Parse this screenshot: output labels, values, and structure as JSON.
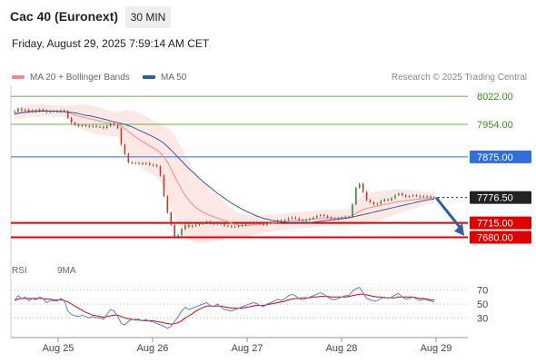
{
  "header": {
    "title": "Cac 40 (Euronext)",
    "timeframe": "30 MIN",
    "datetime": "Friday, August 29, 2025 7:59:14 AM CET"
  },
  "legend": {
    "ma20_label": "MA 20 + Bollinger Bands",
    "ma50_label": "MA 50",
    "credit": "Research © 2025 Trading Central",
    "ma20_color": "#f08a8a",
    "ma50_color": "#2e5f9e"
  },
  "rsi_legend": {
    "rsi_label": "RSI",
    "ma_label": "9MA",
    "rsi_color": "#5b7fd6",
    "ma_color": "#e00000"
  },
  "chart_data": [
    {
      "type": "candlestick",
      "price_range": [
        7648,
        8040
      ],
      "x_ticks": [
        "Aug 25",
        "Aug 26",
        "Aug 27",
        "Aug 28",
        "Aug 29"
      ],
      "levels": [
        {
          "value": 8022.0,
          "label": "8022.00",
          "kind": "resistance",
          "color": "#6ab04c"
        },
        {
          "value": 7954.0,
          "label": "7954.00",
          "kind": "resistance",
          "color": "#6ab04c"
        },
        {
          "value": 7875.0,
          "label": "7875.00",
          "kind": "pivot",
          "color": "#2f6fdc"
        },
        {
          "value": 7776.5,
          "label": "7776.50",
          "kind": "last",
          "color": "#222222"
        },
        {
          "value": 7715.0,
          "label": "7715.00",
          "kind": "support",
          "color": "#e00000"
        },
        {
          "value": 7680.0,
          "label": "7680.00",
          "kind": "support",
          "color": "#e00000"
        }
      ],
      "forecast_arrow": {
        "from": 7776.5,
        "to": 7688
      },
      "closes": [
        7985,
        7992,
        7988,
        7990,
        7985,
        7988,
        7986,
        7990,
        7988,
        7984,
        7986,
        7986,
        7985,
        7988,
        7986,
        7970,
        7958,
        7953,
        7950,
        7952,
        7950,
        7948,
        7950,
        7948,
        7948,
        7945,
        7950,
        7955,
        7952,
        7945,
        7905,
        7882,
        7862,
        7860,
        7860,
        7860,
        7858,
        7860,
        7856,
        7855,
        7852,
        7830,
        7780,
        7740,
        7710,
        7680,
        7685,
        7700,
        7710,
        7705,
        7708,
        7710,
        7712,
        7715,
        7718,
        7714,
        7712,
        7716,
        7712,
        7708,
        7707,
        7705,
        7706,
        7708,
        7710,
        7712,
        7714,
        7716,
        7715,
        7712,
        7710,
        7714,
        7716,
        7718,
        7721,
        7719,
        7722,
        7726,
        7728,
        7726,
        7722,
        7720,
        7723,
        7725,
        7728,
        7732,
        7734,
        7732,
        7728,
        7725,
        7724,
        7726,
        7728,
        7730,
        7730,
        7760,
        7800,
        7810,
        7790,
        7770,
        7765,
        7760,
        7762,
        7768,
        7772,
        7770,
        7775,
        7782,
        7786,
        7782,
        7778,
        7780,
        7782,
        7780,
        7778,
        7780,
        7779,
        7777,
        7776.5
      ],
      "ma20": [
        7978,
        7980,
        7983,
        7985,
        7986,
        7987,
        7987,
        7988,
        7988,
        7987,
        7987,
        7986,
        7986,
        7986,
        7985,
        7983,
        7980,
        7977,
        7974,
        7972,
        7970,
        7968,
        7966,
        7964,
        7962,
        7960,
        7958,
        7956,
        7955,
        7954,
        7950,
        7944,
        7937,
        7930,
        7924,
        7918,
        7912,
        7907,
        7902,
        7897,
        7892,
        7885,
        7875,
        7862,
        7846,
        7828,
        7812,
        7796,
        7782,
        7770,
        7760,
        7752,
        7746,
        7741,
        7737,
        7733,
        7730,
        7727,
        7724,
        7721,
        7718,
        7714,
        7711,
        7709,
        7708,
        7708,
        7709,
        7710,
        7711,
        7712,
        7712,
        7713,
        7714,
        7715,
        7716,
        7717,
        7718,
        7719,
        7720,
        7721,
        7721,
        7722,
        7722,
        7723,
        7724,
        7725,
        7726,
        7727,
        7727,
        7727,
        7727,
        7727,
        7727,
        7728,
        7729,
        7733,
        7738,
        7743,
        7747,
        7750,
        7752,
        7754,
        7756,
        7758,
        7760,
        7761,
        7763,
        7765,
        7767,
        7768,
        7769,
        7770,
        7771,
        7772,
        7773,
        7774,
        7775,
        7775,
        7776
      ],
      "ma50": [
        7980,
        7981,
        7982,
        7983,
        7984,
        7985,
        7985,
        7986,
        7986,
        7986,
        7986,
        7986,
        7986,
        7985,
        7985,
        7984,
        7983,
        7982,
        7980,
        7978,
        7976,
        7975,
        7973,
        7971,
        7969,
        7967,
        7965,
        7962,
        7960,
        7958,
        7956,
        7954,
        7951,
        7948,
        7944,
        7940,
        7936,
        7932,
        7928,
        7924,
        7919,
        7914,
        7908,
        7900,
        7892,
        7883,
        7874,
        7865,
        7856,
        7847,
        7839,
        7831,
        7823,
        7815,
        7808,
        7801,
        7794,
        7787,
        7781,
        7775,
        7769,
        7763,
        7758,
        7753,
        7748,
        7744,
        7740,
        7736,
        7732,
        7729,
        7726,
        7724,
        7722,
        7720,
        7719,
        7718,
        7717,
        7716,
        7716,
        7716,
        7716,
        7716,
        7716,
        7716,
        7717,
        7718,
        7719,
        7720,
        7721,
        7722,
        7723,
        7724,
        7725,
        7726,
        7727,
        7729,
        7731,
        7733,
        7735,
        7737,
        7739,
        7741,
        7743,
        7745,
        7747,
        7749,
        7751,
        7753,
        7755,
        7757,
        7759,
        7761,
        7763,
        7765,
        7767,
        7769,
        7771,
        7772,
        7773
      ],
      "bb_width": [
        14,
        14,
        15,
        15,
        16,
        16,
        16,
        16,
        15,
        15,
        14,
        14,
        14,
        14,
        14,
        16,
        20,
        24,
        28,
        30,
        32,
        33,
        33,
        33,
        33,
        32,
        31,
        30,
        30,
        30,
        36,
        44,
        52,
        58,
        62,
        64,
        65,
        66,
        66,
        66,
        66,
        70,
        76,
        84,
        92,
        98,
        100,
        100,
        98,
        95,
        90,
        85,
        80,
        75,
        70,
        65,
        60,
        55,
        50,
        45,
        40,
        36,
        33,
        30,
        28,
        26,
        25,
        24,
        23,
        22,
        22,
        21,
        21,
        20,
        20,
        20,
        20,
        20,
        20,
        20,
        20,
        20,
        20,
        20,
        20,
        20,
        20,
        20,
        20,
        20,
        20,
        20,
        20,
        20,
        20,
        24,
        30,
        34,
        35,
        36,
        36,
        36,
        35,
        35,
        34,
        33,
        32,
        31,
        30,
        28,
        26,
        24,
        22,
        20,
        18,
        16,
        15,
        14,
        14
      ]
    },
    {
      "type": "line",
      "name": "RSI",
      "ylim": [
        0,
        100
      ],
      "y_ticks": [
        70,
        50,
        30
      ],
      "rsi": [
        55,
        62,
        58,
        60,
        55,
        58,
        56,
        60,
        58,
        52,
        55,
        55,
        54,
        58,
        55,
        40,
        35,
        33,
        32,
        34,
        32,
        30,
        32,
        30,
        30,
        28,
        35,
        42,
        40,
        32,
        22,
        20,
        25,
        28,
        28,
        28,
        26,
        28,
        25,
        24,
        22,
        20,
        18,
        15,
        18,
        25,
        32,
        40,
        45,
        42,
        44,
        46,
        48,
        50,
        52,
        48,
        46,
        50,
        46,
        42,
        41,
        40,
        42,
        44,
        46,
        48,
        50,
        52,
        51,
        48,
        46,
        50,
        52,
        54,
        57,
        55,
        58,
        62,
        64,
        62,
        58,
        56,
        58,
        60,
        62,
        64,
        66,
        64,
        60,
        57,
        56,
        58,
        60,
        62,
        62,
        68,
        72,
        74,
        66,
        58,
        56,
        54,
        55,
        58,
        60,
        58,
        60,
        63,
        65,
        60,
        57,
        58,
        60,
        57,
        55,
        57,
        56,
        54,
        53
      ],
      "ma9": [
        55,
        57,
        58,
        58,
        58,
        58,
        58,
        58,
        58,
        57,
        57,
        56,
        56,
        56,
        55,
        53,
        50,
        47,
        44,
        41,
        38,
        36,
        34,
        33,
        32,
        31,
        32,
        33,
        34,
        34,
        32,
        30,
        29,
        28,
        27,
        27,
        26,
        26,
        26,
        26,
        25,
        24,
        23,
        22,
        21,
        22,
        23,
        26,
        30,
        33,
        36,
        40,
        43,
        45,
        47,
        47,
        47,
        47,
        47,
        46,
        45,
        44,
        44,
        44,
        44,
        45,
        46,
        47,
        48,
        48,
        48,
        49,
        50,
        51,
        52,
        53,
        54,
        56,
        57,
        58,
        58,
        59,
        59,
        59,
        60,
        60,
        61,
        61,
        61,
        60,
        60,
        60,
        60,
        60,
        61,
        62,
        63,
        64,
        64,
        63,
        62,
        61,
        60,
        60,
        59,
        59,
        59,
        59,
        60,
        60,
        60,
        60,
        60,
        59,
        58,
        58,
        57,
        56,
        56
      ]
    }
  ]
}
